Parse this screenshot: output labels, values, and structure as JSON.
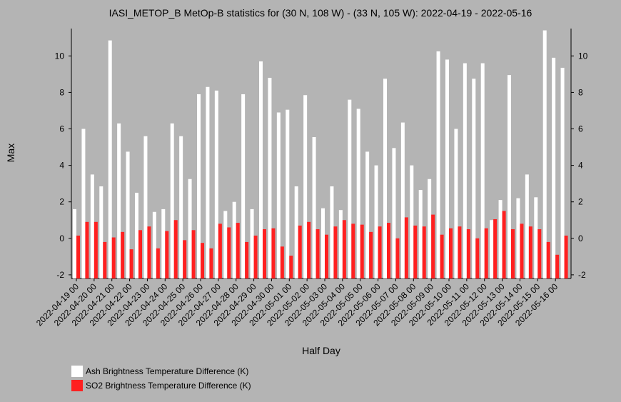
{
  "chart_data": {
    "type": "bar",
    "title": "IASI_METOP_B MetOp-B statistics for (30 N, 108 W) - (33 N, 105 W): 2022-04-19 - 2022-05-16",
    "xlabel": "Half Day",
    "ylabel": "Max",
    "ylim": [
      -2.2,
      11.5
    ],
    "yticks": [
      "-2",
      "0",
      "2",
      "4",
      "6",
      "8",
      "10"
    ],
    "grid": false,
    "legend_position": "bottom-left",
    "categories": [
      "2022-04-19 00",
      "2022-04-19 12",
      "2022-04-20 00",
      "2022-04-20 12",
      "2022-04-21 00",
      "2022-04-21 12",
      "2022-04-22 00",
      "2022-04-22 12",
      "2022-04-23 00",
      "2022-04-23 12",
      "2022-04-24 00",
      "2022-04-24 12",
      "2022-04-25 00",
      "2022-04-25 12",
      "2022-04-26 00",
      "2022-04-26 12",
      "2022-04-27 00",
      "2022-04-27 12",
      "2022-04-28 00",
      "2022-04-28 12",
      "2022-04-29 00",
      "2022-04-29 12",
      "2022-04-30 00",
      "2022-04-30 12",
      "2022-05-01 00",
      "2022-05-01 12",
      "2022-05-02 00",
      "2022-05-02 12",
      "2022-05-03 00",
      "2022-05-03 12",
      "2022-05-04 00",
      "2022-05-04 12",
      "2022-05-05 00",
      "2022-05-05 12",
      "2022-05-06 00",
      "2022-05-06 12",
      "2022-05-07 00",
      "2022-05-07 12",
      "2022-05-08 00",
      "2022-05-08 12",
      "2022-05-09 00",
      "2022-05-09 12",
      "2022-05-10 00",
      "2022-05-10 12",
      "2022-05-11 00",
      "2022-05-11 12",
      "2022-05-12 00",
      "2022-05-12 12",
      "2022-05-13 00",
      "2022-05-13 12",
      "2022-05-14 00",
      "2022-05-14 12",
      "2022-05-15 00",
      "2022-05-15 12",
      "2022-05-16 00",
      "2022-05-16 12"
    ],
    "xtick_labels": [
      "2022-04-19 00",
      "2022-04-20 00",
      "2022-04-21 00",
      "2022-04-22 00",
      "2022-04-23 00",
      "2022-04-24 00",
      "2022-04-25 00",
      "2022-04-26 00",
      "2022-04-27 00",
      "2022-04-28 00",
      "2022-04-29 00",
      "2022-04-30 00",
      "2022-05-01 00",
      "2022-05-02 00",
      "2022-05-03 00",
      "2022-05-04 00",
      "2022-05-05 00",
      "2022-05-06 00",
      "2022-05-07 00",
      "2022-05-08 00",
      "2022-05-09 00",
      "2022-05-10 00",
      "2022-05-11 00",
      "2022-05-12 00",
      "2022-05-13 00",
      "2022-05-14 00",
      "2022-05-15 00",
      "2022-05-16 00"
    ],
    "series": [
      {
        "name": "Ash Brightness Temperature Difference (K)",
        "color": "#ffffff",
        "values": [
          1.6,
          6.0,
          3.5,
          2.85,
          10.85,
          6.3,
          4.75,
          2.5,
          5.6,
          1.45,
          1.6,
          6.3,
          5.6,
          3.25,
          7.9,
          8.3,
          8.1,
          1.5,
          2.0,
          7.9,
          1.6,
          9.7,
          8.8,
          6.9,
          7.05,
          2.85,
          7.85,
          5.55,
          1.65,
          2.85,
          1.55,
          7.6,
          7.1,
          4.75,
          4.0,
          8.75,
          4.95,
          6.35,
          4.0,
          2.65,
          3.25,
          10.25,
          9.8,
          6.0,
          9.6,
          8.75,
          9.6,
          1.0,
          2.1,
          8.95,
          2.2,
          3.5,
          2.25,
          11.4,
          9.9,
          9.35
        ]
      },
      {
        "name": "SO2 Brightness Temperature Difference (K)",
        "color": "#ff2020",
        "values": [
          0.15,
          0.9,
          0.9,
          -0.2,
          0.05,
          0.35,
          -0.6,
          0.45,
          0.65,
          -0.55,
          0.4,
          1.0,
          -0.1,
          0.45,
          -0.25,
          -0.55,
          0.8,
          0.6,
          0.85,
          -0.2,
          0.15,
          0.5,
          0.55,
          -0.45,
          -0.95,
          0.7,
          0.9,
          0.5,
          0.2,
          0.65,
          1.0,
          0.8,
          0.75,
          0.35,
          0.65,
          0.85,
          0.0,
          1.15,
          0.7,
          0.65,
          1.3,
          0.2,
          0.55,
          0.65,
          0.5,
          0.0,
          0.55,
          1.05,
          1.5,
          0.5,
          0.8,
          0.65,
          0.5,
          -0.2,
          -0.9,
          0.15
        ]
      }
    ]
  }
}
